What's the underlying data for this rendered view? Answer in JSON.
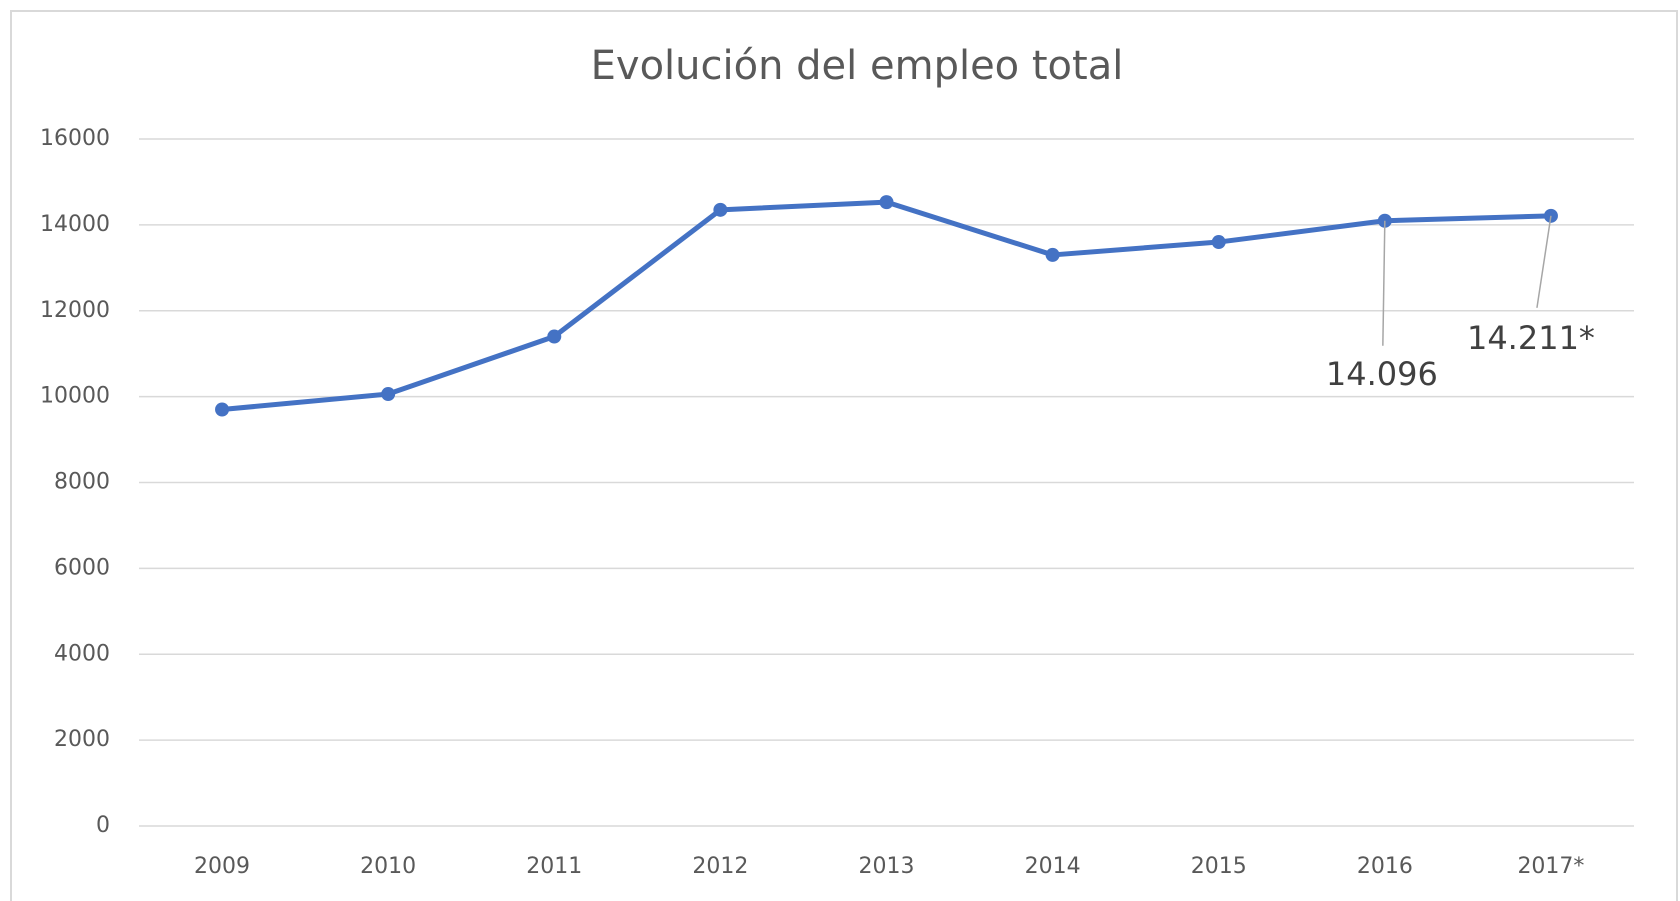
{
  "chart_data": {
    "type": "line",
    "title": "Evolución del empleo total",
    "categories": [
      "2009",
      "2010",
      "2011",
      "2012",
      "2013",
      "2014",
      "2015",
      "2016",
      "2017*"
    ],
    "series": [
      {
        "name": "Empleo total",
        "color": "#4472c4",
        "values": [
          9700,
          10060,
          11400,
          14350,
          14530,
          13300,
          13600,
          14096,
          14211
        ],
        "value_labels": [
          null,
          null,
          null,
          null,
          null,
          null,
          null,
          "14.096",
          "14.211*"
        ]
      }
    ],
    "ylim": [
      0,
      16000
    ],
    "yticks": [
      0,
      2000,
      4000,
      6000,
      8000,
      10000,
      12000,
      14000,
      16000
    ],
    "grid": true
  }
}
